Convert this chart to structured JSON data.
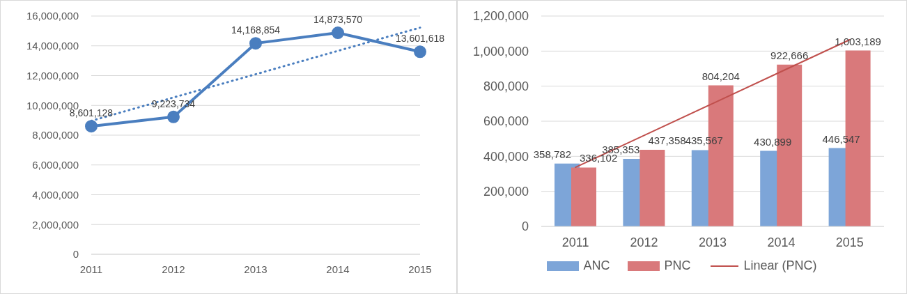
{
  "chart_data": [
    {
      "type": "line",
      "categories": [
        "2011",
        "2012",
        "2013",
        "2014",
        "2015"
      ],
      "marker": "circle",
      "grid": "y",
      "ylim": [
        0,
        16000000
      ],
      "yticks": [
        0,
        {
          "value": 2000000,
          "label": "2,000,000"
        },
        {
          "value": 4000000,
          "label": "4,000,000"
        },
        {
          "value": 6000000,
          "label": "6,000,000"
        },
        {
          "value": 8000000,
          "label": "8,000,000"
        },
        {
          "value": 10000000,
          "label": "10,000,000"
        },
        {
          "value": 12000000,
          "label": "12,000,000"
        },
        {
          "value": 14000000,
          "label": "14,000,000"
        },
        {
          "value": 16000000,
          "label": "16,000,000"
        }
      ],
      "series": [
        {
          "color": "#4a7ebf",
          "values": [
            8601128,
            9223734,
            14168854,
            14873570,
            13601618
          ],
          "value_labels": [
            "8,601,128",
            "9,223,734",
            "14,168,854",
            "14,873,570",
            "13,601,618"
          ],
          "line_style": "solid"
        },
        {
          "color": "#4a7ebf",
          "values": [
            8960000,
            10530000,
            12090000,
            13660000,
            15220000
          ],
          "line_style": "dotted",
          "marker": "none"
        }
      ]
    },
    {
      "type": "bar",
      "categories": [
        "2011",
        "2012",
        "2013",
        "2014",
        "2015"
      ],
      "grid": "y",
      "legend": "bottom",
      "ylim": [
        0,
        1200000
      ],
      "yticks": [
        0,
        {
          "value": 200000,
          "label": "200,000"
        },
        {
          "value": 400000,
          "label": "400,000"
        },
        {
          "value": 600000,
          "label": "600,000"
        },
        {
          "value": 800000,
          "label": "800,000"
        },
        {
          "value": 1000000,
          "label": "1,000,000"
        },
        {
          "value": 1200000,
          "label": "1,200,000"
        }
      ],
      "series": [
        {
          "name": "ANC",
          "color": "#7da5d8",
          "values": [
            358782,
            385353,
            435567,
            430899,
            446547
          ],
          "value_labels": [
            "358,782",
            "385,353",
            "435,567",
            "430,899",
            "446,547"
          ]
        },
        {
          "name": "PNC",
          "color": "#d9797b",
          "values": [
            336102,
            437358,
            804204,
            922666,
            1003189
          ],
          "value_labels": [
            "336,102",
            "437,358",
            "804,204",
            "922,666",
            "1,003,189"
          ]
        },
        {
          "name": "Linear (PNC)",
          "type": "line",
          "color": "#c0504d",
          "values": [
            337000,
            519000,
            701000,
            883000,
            1065000
          ],
          "line_style": "solid",
          "marker": "none"
        }
      ]
    }
  ]
}
